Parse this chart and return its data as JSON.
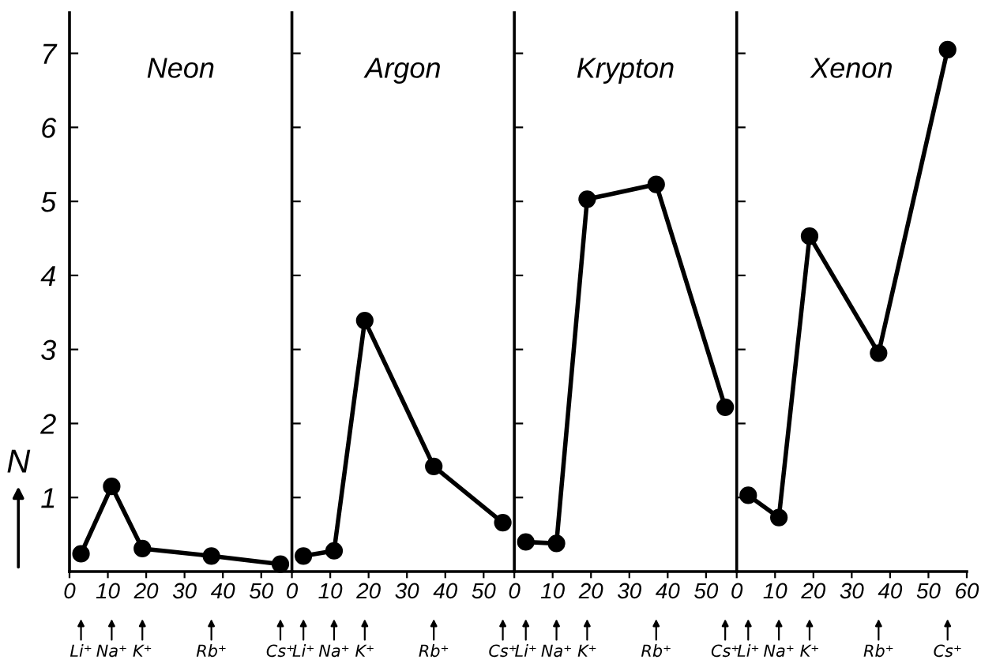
{
  "chart_data": [
    {
      "type": "line",
      "title": "Neon",
      "ylabel": "N",
      "x": [
        3,
        11,
        19,
        37,
        55
      ],
      "values": [
        0.24,
        1.15,
        0.31,
        0.21,
        0.1
      ],
      "color": "#000000",
      "marker": "circle",
      "line_style": "solid",
      "xlim": [
        0,
        58
      ],
      "ylim": [
        0,
        7.55
      ],
      "xticks": [
        0,
        10,
        20,
        30,
        40,
        50
      ],
      "yticks": [
        1,
        2,
        3,
        4,
        5,
        6,
        7
      ],
      "grid": false,
      "annotations": [
        "Li⁺",
        "Na⁺",
        "K⁺",
        "Rb⁺",
        "Cs⁺"
      ]
    },
    {
      "type": "line",
      "title": "Argon",
      "x": [
        3,
        11,
        19,
        37,
        55
      ],
      "values": [
        0.21,
        0.28,
        3.39,
        1.42,
        0.66
      ],
      "color": "#000000",
      "marker": "circle",
      "line_style": "solid",
      "xlim": [
        0,
        58
      ],
      "ylim": [
        0,
        7.55
      ],
      "xticks": [
        0,
        10,
        20,
        30,
        40,
        50
      ],
      "yticks": [
        1,
        2,
        3,
        4,
        5,
        6,
        7
      ],
      "grid": false,
      "tick_labels": "x",
      "annotations": [
        "Li⁺",
        "Na⁺",
        "K⁺",
        "Rb⁺",
        "Cs⁺"
      ]
    },
    {
      "type": "line",
      "title": "Krypton",
      "x": [
        3,
        11,
        19,
        37,
        55
      ],
      "values": [
        0.4,
        0.38,
        5.03,
        5.23,
        2.22
      ],
      "color": "#000000",
      "marker": "circle",
      "line_style": "solid",
      "xlim": [
        0,
        58
      ],
      "ylim": [
        0,
        7.55
      ],
      "xticks": [
        0,
        10,
        20,
        30,
        40,
        50
      ],
      "yticks": [
        1,
        2,
        3,
        4,
        5,
        6,
        7
      ],
      "grid": false,
      "tick_labels": "x",
      "annotations": [
        "Li⁺",
        "Na⁺",
        "K⁺",
        "Rb⁺",
        "Cs⁺"
      ]
    },
    {
      "type": "line",
      "title": "Xenon",
      "x": [
        3,
        11,
        19,
        37,
        55
      ],
      "values": [
        1.03,
        0.73,
        4.53,
        2.95,
        7.05
      ],
      "color": "#000000",
      "marker": "circle",
      "line_style": "solid",
      "xlim": [
        0,
        60
      ],
      "ylim": [
        0,
        7.55
      ],
      "xticks": [
        0,
        10,
        20,
        30,
        40,
        50,
        60
      ],
      "yticks": [
        1,
        2,
        3,
        4,
        5,
        6,
        7
      ],
      "grid": false,
      "tick_labels": "x",
      "annotations": [
        "Li⁺",
        "Na⁺",
        "K⁺",
        "Rb⁺",
        "Cs⁺"
      ]
    }
  ]
}
